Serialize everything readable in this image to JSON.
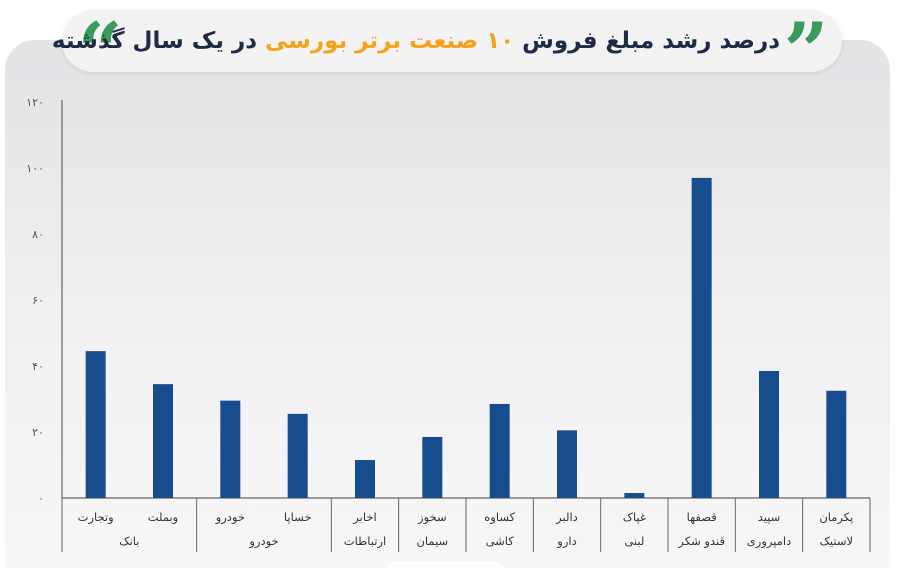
{
  "title": {
    "before": "درصد رشد مبلغ فروش ",
    "highlight": "۱۰ صنعت برتر بورسی",
    "after": " در یک سال گذشته"
  },
  "colors": {
    "bar": "#174c8d",
    "accent": "#f5a31a",
    "quote": "#3a9a5b",
    "title": "#1f2a44"
  },
  "chart_data": {
    "type": "bar",
    "title": "درصد رشد مبلغ فروش ۱۰ صنعت برتر بورسی در یک سال گذشته",
    "ylim": [
      0,
      120
    ],
    "yticks": [
      0,
      20,
      40,
      60,
      80,
      100,
      120
    ],
    "ytick_labels": [
      "۰",
      "۲۰",
      "۴۰",
      "۶۰",
      "۸۰",
      "۱۰۰",
      "۱۲۰"
    ],
    "grid": false,
    "categories": [
      "وتجارت",
      "وبملت",
      "خودرو",
      "خساپا",
      "اخابر",
      "سخوز",
      "کساوه",
      "دالبر",
      "غپاک",
      "قصفها",
      "سپید",
      "پکرمان"
    ],
    "values": [
      44.5,
      34.5,
      29.5,
      25.5,
      11.5,
      18.5,
      28.5,
      20.5,
      1.5,
      97,
      38.5,
      32.5
    ],
    "groups": [
      {
        "label": "بانک",
        "start": 0,
        "end": 1
      },
      {
        "label": "خودرو",
        "start": 2,
        "end": 3
      },
      {
        "label": "ارتباطات",
        "start": 4,
        "end": 4
      },
      {
        "label": "سیمان",
        "start": 5,
        "end": 5
      },
      {
        "label": "کاشی",
        "start": 6,
        "end": 6
      },
      {
        "label": "دارو",
        "start": 7,
        "end": 7
      },
      {
        "label": "لبنی",
        "start": 8,
        "end": 8
      },
      {
        "label": "قندو شکر",
        "start": 9,
        "end": 9
      },
      {
        "label": "دامپروری",
        "start": 10,
        "end": 10
      },
      {
        "label": "لاستیک",
        "start": 11,
        "end": 11
      }
    ]
  }
}
